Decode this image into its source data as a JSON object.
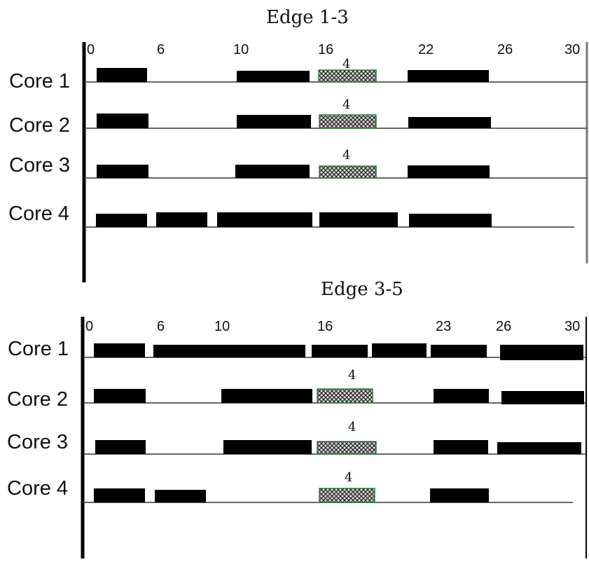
{
  "panels": [
    {
      "title": "Edge 1-3",
      "ticks": [
        "0",
        "6",
        "10",
        "16",
        "22",
        "26",
        "30"
      ],
      "cores": [
        {
          "label": "Core 1",
          "hatch_label": "4"
        },
        {
          "label": "Core 2",
          "hatch_label": "4"
        },
        {
          "label": "Core 3",
          "hatch_label": "4"
        },
        {
          "label": "Core 4",
          "hatch_label": ""
        }
      ]
    },
    {
      "title": "Edge 3-5",
      "ticks": [
        "0",
        "6",
        "10",
        "16",
        "23",
        "26",
        "30"
      ],
      "cores": [
        {
          "label": "Core 1",
          "hatch_label": ""
        },
        {
          "label": "Core 2",
          "hatch_label": "4"
        },
        {
          "label": "Core 3",
          "hatch_label": "4"
        },
        {
          "label": "Core 4",
          "hatch_label": "4"
        }
      ]
    }
  ],
  "colors": {
    "block": "#000000",
    "hatch_fill": "#9a9a9a",
    "hatch_border": "#2e7d32",
    "axis": "#000000",
    "baseline": "#333333"
  }
}
